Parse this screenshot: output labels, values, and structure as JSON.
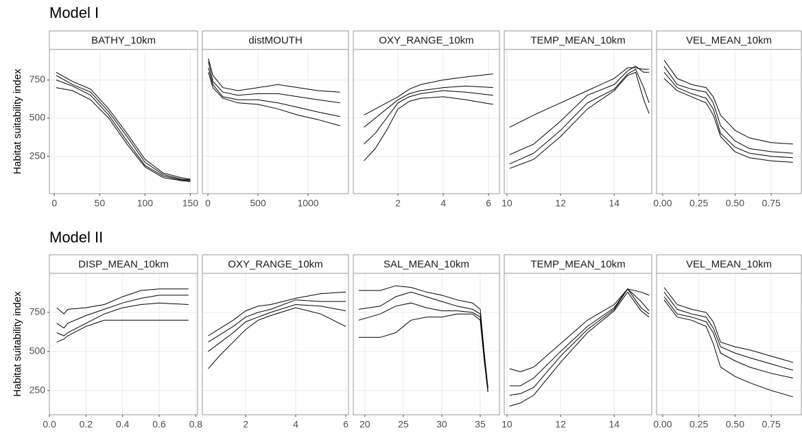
{
  "sections": [
    {
      "title": "Model I",
      "y_label": "Habitat suitability index"
    },
    {
      "title": "Model II",
      "y_label": "Habitat suitability index"
    }
  ],
  "chart_data": [
    {
      "type": "line",
      "title": "BATHY_10km",
      "x": [
        2,
        20,
        40,
        60,
        80,
        100,
        120,
        140,
        150
      ],
      "xlim": [
        -5.5,
        158
      ],
      "xticks": [
        0,
        50,
        100,
        150
      ],
      "ylim": [
        5,
        950
      ],
      "yticks": [
        250,
        500,
        750
      ],
      "grid": true,
      "series": [
        {
          "color": "#000000",
          "values": [
            800,
            740,
            690,
            560,
            400,
            230,
            140,
            110,
            100
          ]
        },
        {
          "color": "#000000",
          "values": [
            750,
            710,
            650,
            520,
            350,
            190,
            120,
            95,
            90
          ]
        },
        {
          "color": "#000000",
          "values": [
            700,
            680,
            620,
            500,
            330,
            180,
            110,
            90,
            85
          ]
        },
        {
          "color": "#000000",
          "values": [
            780,
            720,
            670,
            540,
            380,
            210,
            130,
            100,
            95
          ]
        }
      ]
    },
    {
      "type": "line",
      "title": "distMOUTH",
      "x": [
        5,
        50,
        150,
        300,
        500,
        700,
        900,
        1100,
        1320
      ],
      "xlim": [
        -55,
        1404
      ],
      "xticks": [
        0,
        500,
        1000
      ],
      "ylim": [
        5,
        950
      ],
      "yticks": [
        250,
        500,
        750
      ],
      "grid": true,
      "series": [
        {
          "color": "#000000",
          "values": [
            890,
            780,
            700,
            680,
            700,
            720,
            700,
            680,
            670
          ]
        },
        {
          "color": "#000000",
          "values": [
            870,
            740,
            670,
            650,
            660,
            660,
            640,
            620,
            600
          ]
        },
        {
          "color": "#000000",
          "values": [
            830,
            720,
            640,
            620,
            620,
            600,
            570,
            540,
            510
          ]
        },
        {
          "color": "#000000",
          "values": [
            800,
            700,
            630,
            600,
            590,
            560,
            520,
            490,
            450
          ]
        }
      ]
    },
    {
      "type": "line",
      "title": "OXY_RANGE_10km",
      "x": [
        0.5,
        1,
        1.5,
        2,
        2.5,
        3,
        4,
        5,
        6.2
      ],
      "xlim": [
        0.03,
        6.48
      ],
      "xticks": [
        2,
        4,
        6
      ],
      "ylim": [
        5,
        950
      ],
      "yticks": [
        250,
        500,
        750
      ],
      "grid": true,
      "series": [
        {
          "color": "#000000",
          "values": [
            520,
            560,
            600,
            640,
            690,
            720,
            750,
            770,
            790
          ]
        },
        {
          "color": "#000000",
          "values": [
            440,
            500,
            560,
            620,
            660,
            680,
            700,
            710,
            700
          ]
        },
        {
          "color": "#000000",
          "values": [
            330,
            400,
            500,
            600,
            640,
            660,
            680,
            670,
            650
          ]
        },
        {
          "color": "#000000",
          "values": [
            220,
            300,
            420,
            560,
            610,
            630,
            640,
            620,
            590
          ]
        }
      ]
    },
    {
      "type": "line",
      "title": "TEMP_MEAN_10km",
      "x": [
        10.1,
        11,
        12,
        13,
        14,
        14.5,
        14.8,
        15.1,
        15.3
      ],
      "xlim": [
        9.9,
        15.4
      ],
      "xticks": [
        10,
        12,
        14
      ],
      "ylim": [
        5,
        950
      ],
      "yticks": [
        250,
        500,
        750
      ],
      "grid": true,
      "series": [
        {
          "color": "#000000",
          "values": [
            440,
            520,
            600,
            680,
            760,
            830,
            830,
            820,
            820
          ]
        },
        {
          "color": "#000000",
          "values": [
            260,
            330,
            480,
            650,
            720,
            810,
            840,
            800,
            800
          ]
        },
        {
          "color": "#000000",
          "values": [
            200,
            270,
            420,
            600,
            690,
            790,
            820,
            700,
            600
          ]
        },
        {
          "color": "#000000",
          "values": [
            170,
            230,
            380,
            560,
            680,
            780,
            800,
            620,
            530
          ]
        }
      ]
    },
    {
      "type": "line",
      "title": "VEL_MEAN_10km",
      "x": [
        0.01,
        0.1,
        0.2,
        0.3,
        0.35,
        0.4,
        0.5,
        0.6,
        0.75,
        0.9
      ],
      "xlim": [
        -0.042,
        0.958
      ],
      "xticks": [
        {
          "value": 0,
          "label": "0.00"
        },
        0.25,
        {
          "value": 0.5,
          "label": "0.50"
        },
        0.75
      ],
      "ylim": [
        5,
        950
      ],
      "yticks": [
        250,
        500,
        750
      ],
      "grid": true,
      "series": [
        {
          "color": "#000000",
          "values": [
            880,
            760,
            720,
            700,
            640,
            520,
            420,
            370,
            340,
            330
          ]
        },
        {
          "color": "#000000",
          "values": [
            840,
            720,
            690,
            670,
            600,
            450,
            350,
            300,
            280,
            270
          ]
        },
        {
          "color": "#000000",
          "values": [
            800,
            700,
            660,
            630,
            560,
            400,
            310,
            270,
            250,
            240
          ]
        },
        {
          "color": "#000000",
          "values": [
            760,
            680,
            640,
            600,
            520,
            380,
            280,
            240,
            220,
            210
          ]
        }
      ]
    },
    {
      "type": "line",
      "title": "DISP_MEAN_10km",
      "x": [
        0.04,
        0.08,
        0.1,
        0.2,
        0.3,
        0.4,
        0.5,
        0.6,
        0.76
      ],
      "xlim": [
        0,
        0.81
      ],
      "xticks": [
        {
          "value": 0,
          "label": "0.0"
        },
        0.2,
        0.4,
        0.6,
        0.8
      ],
      "ylim": [
        95,
        1000
      ],
      "yticks": [
        250,
        500,
        750
      ],
      "grid": true,
      "series": [
        {
          "color": "#000000",
          "values": [
            780,
            740,
            770,
            780,
            800,
            850,
            890,
            900,
            900
          ]
        },
        {
          "color": "#000000",
          "values": [
            680,
            650,
            680,
            730,
            770,
            810,
            840,
            860,
            860
          ]
        },
        {
          "color": "#000000",
          "values": [
            620,
            600,
            620,
            680,
            740,
            780,
            800,
            810,
            800
          ]
        },
        {
          "color": "#000000",
          "values": [
            560,
            580,
            600,
            660,
            700,
            700,
            700,
            700,
            700
          ]
        }
      ]
    },
    {
      "type": "line",
      "title": "OXY_RANGE_10km",
      "x": [
        0.5,
        1,
        1.5,
        2,
        2.5,
        3,
        4,
        5,
        6
      ],
      "xlim": [
        0.27,
        6.11
      ],
      "xticks": [
        2,
        4,
        6
      ],
      "ylim": [
        95,
        1000
      ],
      "yticks": [
        250,
        500,
        750
      ],
      "grid": true,
      "series": [
        {
          "color": "#000000",
          "values": [
            600,
            650,
            700,
            760,
            790,
            800,
            840,
            870,
            880
          ]
        },
        {
          "color": "#000000",
          "values": [
            560,
            610,
            660,
            720,
            750,
            770,
            830,
            820,
            820
          ]
        },
        {
          "color": "#000000",
          "values": [
            500,
            560,
            620,
            690,
            720,
            750,
            800,
            790,
            760
          ]
        },
        {
          "color": "#000000",
          "values": [
            390,
            480,
            560,
            640,
            700,
            730,
            780,
            740,
            660
          ]
        }
      ]
    },
    {
      "type": "line",
      "title": "SAL_MEAN_10km",
      "x": [
        19.2,
        22,
        24,
        26,
        28,
        30,
        32,
        34,
        35,
        35.5,
        36
      ],
      "xlim": [
        18.5,
        37.5
      ],
      "xticks": [
        20,
        25,
        30,
        35
      ],
      "ylim": [
        95,
        1000
      ],
      "yticks": [
        250,
        500,
        750
      ],
      "grid": true,
      "series": [
        {
          "color": "#000000",
          "values": [
            890,
            890,
            920,
            910,
            880,
            860,
            830,
            810,
            770,
            500,
            240
          ]
        },
        {
          "color": "#000000",
          "values": [
            770,
            790,
            850,
            880,
            850,
            820,
            790,
            770,
            740,
            500,
            270
          ]
        },
        {
          "color": "#000000",
          "values": [
            700,
            740,
            790,
            810,
            780,
            760,
            760,
            750,
            720,
            480,
            260
          ]
        },
        {
          "color": "#000000",
          "values": [
            590,
            590,
            620,
            700,
            720,
            720,
            740,
            740,
            700,
            450,
            240
          ]
        }
      ]
    },
    {
      "type": "line",
      "title": "TEMP_MEAN_10km",
      "x": [
        10.1,
        10.5,
        11,
        12,
        13,
        14,
        14.5,
        15,
        15.3
      ],
      "xlim": [
        9.9,
        15.4
      ],
      "xticks": [
        10,
        12,
        14
      ],
      "ylim": [
        95,
        1000
      ],
      "yticks": [
        250,
        500,
        750
      ],
      "grid": true,
      "series": [
        {
          "color": "#000000",
          "values": [
            390,
            370,
            400,
            550,
            700,
            800,
            900,
            880,
            860
          ]
        },
        {
          "color": "#000000",
          "values": [
            280,
            280,
            330,
            500,
            660,
            780,
            900,
            820,
            760
          ]
        },
        {
          "color": "#000000",
          "values": [
            220,
            230,
            270,
            470,
            640,
            770,
            900,
            780,
            740
          ]
        },
        {
          "color": "#000000",
          "values": [
            150,
            170,
            220,
            430,
            620,
            760,
            880,
            760,
            720
          ]
        }
      ]
    },
    {
      "type": "line",
      "title": "VEL_MEAN_10km",
      "x": [
        0.01,
        0.1,
        0.2,
        0.3,
        0.35,
        0.4,
        0.5,
        0.6,
        0.75,
        0.9
      ],
      "xlim": [
        -0.042,
        0.958
      ],
      "xticks": [
        {
          "value": 0,
          "label": "0.00"
        },
        0.25,
        {
          "value": 0.5,
          "label": "0.50"
        },
        0.75
      ],
      "ylim": [
        95,
        1000
      ],
      "yticks": [
        250,
        500,
        750
      ],
      "grid": true,
      "series": [
        {
          "color": "#000000",
          "values": [
            910,
            800,
            770,
            750,
            690,
            560,
            530,
            510,
            470,
            430
          ]
        },
        {
          "color": "#000000",
          "values": [
            880,
            770,
            740,
            720,
            650,
            530,
            490,
            460,
            420,
            380
          ]
        },
        {
          "color": "#000000",
          "values": [
            850,
            740,
            720,
            690,
            620,
            490,
            440,
            400,
            360,
            330
          ]
        },
        {
          "color": "#000000",
          "values": [
            830,
            720,
            700,
            660,
            550,
            400,
            340,
            300,
            250,
            210
          ]
        }
      ]
    }
  ]
}
